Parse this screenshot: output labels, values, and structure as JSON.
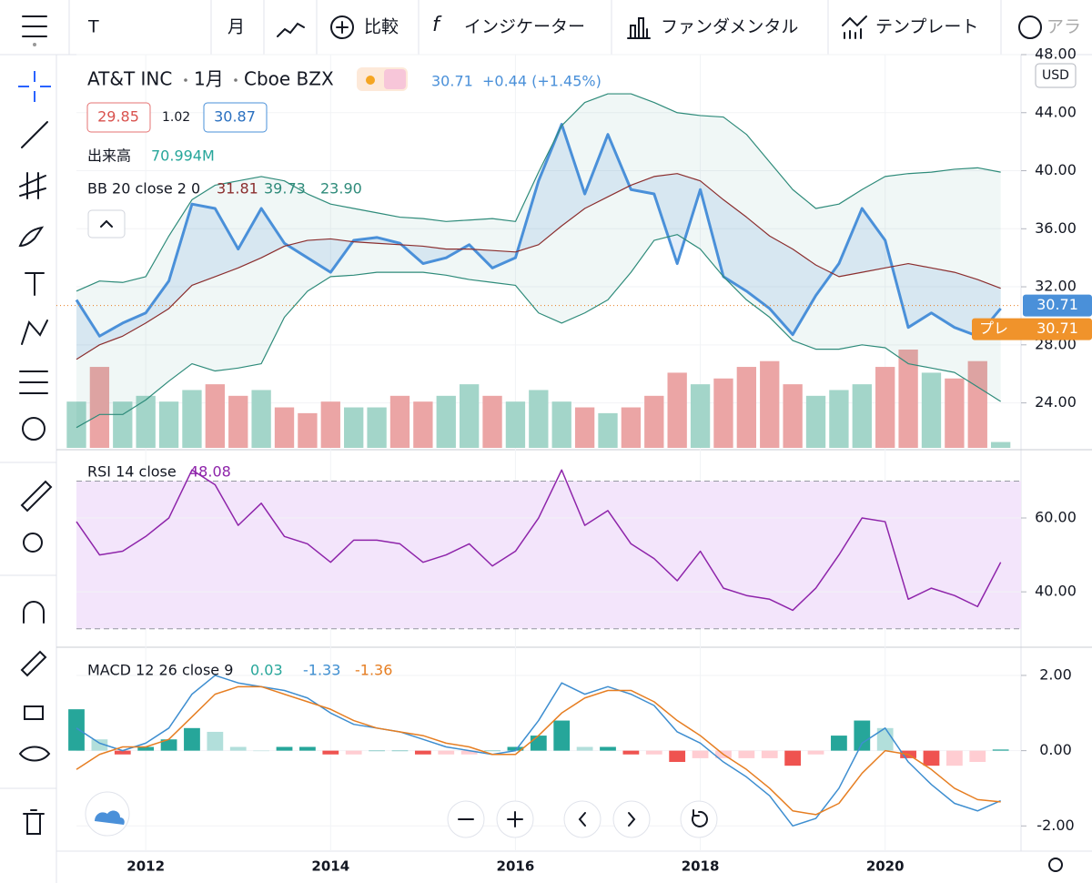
{
  "toolbar": {
    "symbol": "T",
    "interval": "月",
    "compare": "比較",
    "indicators": "インジケーター",
    "fundamentals": "ファンダメンタル",
    "templates": "テンプレート",
    "alert": "アラ"
  },
  "legend": {
    "name": "AT&T INC",
    "interval": "1月",
    "exchange": "Cboe BZX",
    "last": "30.71",
    "change": "+0.44 (+1.45%)",
    "bid": "29.85",
    "spread": "1.02",
    "ask": "30.87",
    "volume_label": "出来高",
    "volume_value": "70.994M",
    "bb_label": "BB 20 close 2 0",
    "bb_values": [
      "31.81",
      "39.73",
      "23.90"
    ],
    "rsi_label": "RSI 14 close",
    "rsi_value": "48.08",
    "macd_label": "MACD 12 26 close 9",
    "macd_values": [
      "0.03",
      "-1.33",
      "-1.36"
    ]
  },
  "chart_data": {
    "type": "line",
    "x": [
      2011.25,
      2011.5,
      2011.75,
      2012,
      2012.25,
      2012.5,
      2012.75,
      2013,
      2013.25,
      2013.5,
      2013.75,
      2014,
      2014.25,
      2014.5,
      2014.75,
      2015,
      2015.25,
      2015.5,
      2015.75,
      2016,
      2016.25,
      2016.5,
      2016.75,
      2017,
      2017.25,
      2017.5,
      2017.75,
      2018,
      2018.25,
      2018.5,
      2018.75,
      2019,
      2019.25,
      2019.5,
      2019.75,
      2020,
      2020.25,
      2020.5,
      2020.75,
      2021,
      2021.25
    ],
    "xlim": [
      2011.25,
      2021.47
    ],
    "xticks": [
      2012,
      2014,
      2016,
      2018,
      2020
    ],
    "grid": true,
    "panes": [
      {
        "ylim": [
          20.9,
          48
        ],
        "yticks": [
          {
            "value": 24,
            "label": "24.00"
          },
          {
            "value": 28,
            "label": "28.00"
          },
          {
            "value": 32,
            "label": "32.00"
          },
          {
            "value": 36,
            "label": "36.00"
          },
          {
            "value": 40,
            "label": "40.00"
          },
          {
            "value": 44,
            "label": "44.00"
          },
          {
            "value": 48,
            "label": "48.00"
          }
        ],
        "currency": "USD",
        "current_price": 30.71,
        "pre_market": {
          "label": "プレ",
          "value": 30.71
        },
        "volume": {
          "values": [
            560,
            980,
            560,
            630,
            560,
            700,
            770,
            630,
            700,
            490,
            420,
            560,
            490,
            490,
            630,
            560,
            630,
            770,
            630,
            560,
            700,
            560,
            490,
            420,
            490,
            630,
            910,
            770,
            840,
            980,
            1050,
            770,
            630,
            700,
            770,
            980,
            1190,
            910,
            840,
            1050,
            70.994
          ],
          "up_color": "#a3d5c9",
          "down_color": "#eba5a5"
        },
        "series": [
          {
            "type": "line",
            "color": "#4a90d9",
            "values": [
              31.1,
              28.6,
              29.5,
              30.2,
              32.4,
              37.7,
              37.4,
              34.6,
              37.4,
              35.0,
              34.0,
              33.0,
              35.2,
              35.4,
              35.0,
              33.6,
              34.0,
              34.9,
              33.3,
              34.0,
              39.3,
              43.2,
              38.4,
              42.5,
              38.7,
              38.4,
              33.6,
              38.7,
              32.7,
              31.7,
              30.5,
              28.7,
              31.4,
              33.6,
              37.4,
              35.2,
              29.2,
              30.2,
              29.2,
              28.6,
              30.5
            ]
          },
          {
            "type": "line",
            "color": "#2e8b7a",
            "values": [
              31.7,
              32.4,
              32.3,
              32.7,
              35.5,
              38.0,
              39.0,
              39.3,
              39.6,
              39.3,
              38.4,
              37.7,
              37.4,
              37.1,
              36.8,
              36.7,
              36.5,
              36.6,
              36.7,
              36.5,
              39.9,
              43.1,
              44.7,
              45.3,
              45.3,
              44.7,
              44.0,
              43.8,
              43.7,
              42.5,
              40.6,
              38.7,
              37.4,
              37.7,
              38.7,
              39.6,
              39.8,
              39.9,
              40.1,
              40.2,
              39.9
            ]
          },
          {
            "type": "line",
            "color": "#8b2e2e",
            "values": [
              27.0,
              28.0,
              28.6,
              29.5,
              30.5,
              32.1,
              32.7,
              33.3,
              34.0,
              34.8,
              35.2,
              35.3,
              35.1,
              35.0,
              34.9,
              34.8,
              34.6,
              34.6,
              34.5,
              34.4,
              34.9,
              36.2,
              37.4,
              38.2,
              39.0,
              39.6,
              39.8,
              39.3,
              38.0,
              36.8,
              35.5,
              34.6,
              33.5,
              32.7,
              33.0,
              33.3,
              33.6,
              33.3,
              33.0,
              32.5,
              31.9
            ]
          },
          {
            "type": "line",
            "color": "#2e8b7a",
            "values": [
              22.3,
              23.2,
              23.2,
              24.2,
              25.5,
              26.7,
              26.2,
              26.4,
              26.7,
              29.9,
              31.7,
              32.7,
              32.8,
              33.0,
              33.0,
              33.0,
              32.8,
              32.5,
              32.3,
              32.1,
              30.2,
              29.5,
              30.2,
              31.1,
              33.0,
              35.2,
              35.6,
              34.6,
              32.7,
              31.1,
              29.9,
              28.3,
              27.7,
              27.7,
              28.0,
              27.8,
              26.7,
              26.4,
              26.1,
              25.1,
              24.1
            ]
          }
        ]
      },
      {
        "ylim": [
          25.25,
          77.75
        ],
        "yticks": [
          {
            "value": 40,
            "label": "40.00"
          },
          {
            "value": 60,
            "label": "60.00"
          }
        ],
        "bands": [
          30,
          70
        ],
        "band_color": "#f3e5fb",
        "series": [
          {
            "type": "line",
            "color": "#8e24aa",
            "values": [
              59,
              50,
              51,
              55,
              60,
              73,
              69,
              58,
              64,
              55,
              53,
              48,
              54,
              54,
              53,
              48,
              50,
              53,
              47,
              51,
              60,
              73,
              58,
              62,
              53,
              49,
              43,
              51,
              41,
              39,
              38,
              35,
              41,
              50,
              60,
              59,
              38,
              41,
              39,
              36,
              48
            ]
          }
        ]
      },
      {
        "ylim": [
          -2.67,
          2.7
        ],
        "yticks": [
          {
            "value": -2,
            "label": "-2.00"
          },
          {
            "value": 0,
            "label": "0.00"
          },
          {
            "value": 2,
            "label": "2.00"
          }
        ],
        "series": [
          {
            "type": "bar",
            "colors": [
              "#26a69a",
              "#b2dfdb",
              "#ef5350",
              "#ffcdd2"
            ],
            "values": [
              1.1,
              0.3,
              -0.1,
              0.1,
              0.3,
              0.6,
              0.5,
              0.1,
              0,
              0.1,
              0.1,
              -0.1,
              -0.1,
              0,
              0,
              -0.1,
              -0.1,
              -0.1,
              0,
              0.1,
              0.4,
              0.8,
              0.1,
              0.1,
              -0.1,
              -0.1,
              -0.3,
              -0.2,
              -0.2,
              -0.2,
              -0.2,
              -0.4,
              -0.1,
              0.4,
              0.8,
              0.6,
              -0.2,
              -0.4,
              -0.4,
              -0.3,
              0.03
            ]
          },
          {
            "type": "line",
            "color": "#3e8ed0",
            "values": [
              0.6,
              0.2,
              0.0,
              0.2,
              0.6,
              1.5,
              2.0,
              1.8,
              1.7,
              1.6,
              1.4,
              1.0,
              0.7,
              0.6,
              0.5,
              0.3,
              0.1,
              0.0,
              -0.1,
              0.0,
              0.8,
              1.8,
              1.5,
              1.7,
              1.5,
              1.2,
              0.5,
              0.2,
              -0.3,
              -0.7,
              -1.2,
              -2.0,
              -1.8,
              -1.0,
              0.2,
              0.6,
              -0.3,
              -0.9,
              -1.4,
              -1.6,
              -1.33
            ]
          },
          {
            "type": "line",
            "color": "#e67e22",
            "values": [
              -0.5,
              -0.1,
              0.1,
              0.1,
              0.3,
              0.9,
              1.5,
              1.7,
              1.7,
              1.5,
              1.3,
              1.1,
              0.8,
              0.6,
              0.5,
              0.4,
              0.2,
              0.1,
              -0.1,
              -0.1,
              0.4,
              1.0,
              1.4,
              1.6,
              1.6,
              1.3,
              0.8,
              0.4,
              -0.1,
              -0.5,
              -1.0,
              -1.6,
              -1.7,
              -1.4,
              -0.6,
              0.0,
              -0.1,
              -0.5,
              -1.0,
              -1.3,
              -1.36
            ]
          }
        ]
      }
    ]
  }
}
